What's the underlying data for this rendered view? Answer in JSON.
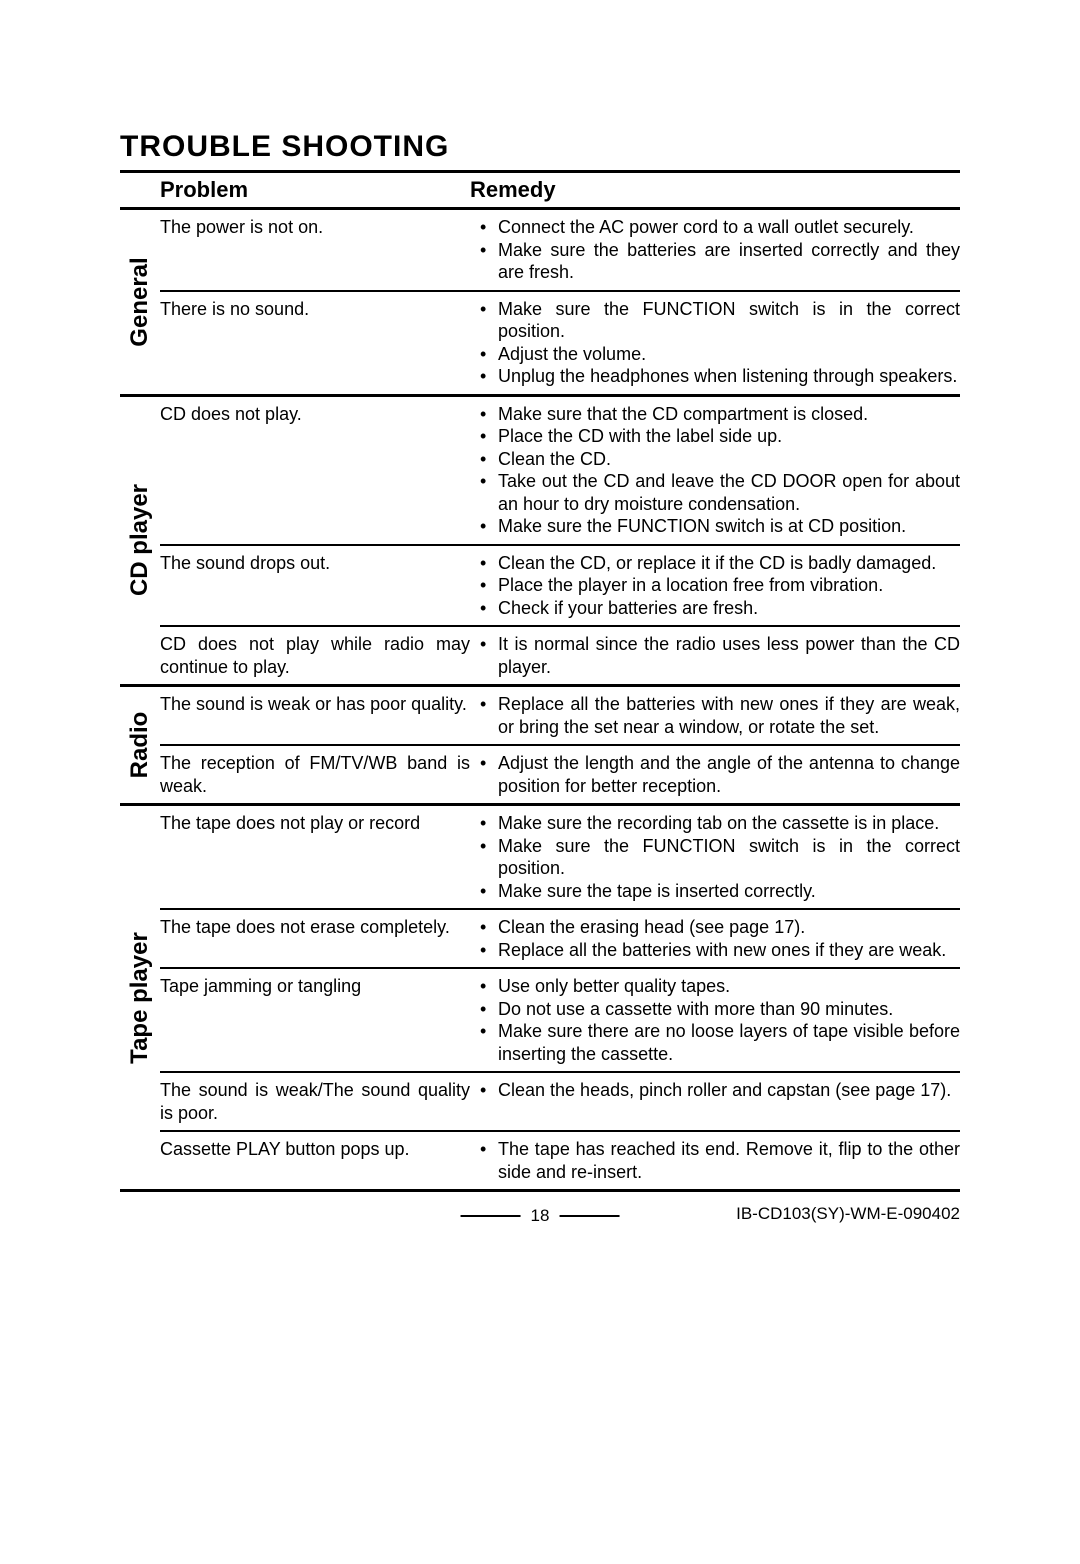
{
  "title": "TROUBLE SHOOTING",
  "headers": {
    "problem": "Problem",
    "remedy": "Remedy"
  },
  "sections": [
    {
      "category": "General",
      "rows": [
        {
          "problem": "The power is not on.",
          "remedies": [
            "Connect the AC power cord to a wall outlet securely.",
            "Make sure the batteries are inserted correctly and they are fresh."
          ]
        },
        {
          "problem": "There is no sound.",
          "remedies": [
            "Make sure the FUNCTION switch is in the correct position.",
            "Adjust the volume.",
            "Unplug the headphones when listening through speakers."
          ]
        }
      ]
    },
    {
      "category": "CD player",
      "rows": [
        {
          "problem": "CD does not play.",
          "remedies": [
            "Make sure that the CD compartment is closed.",
            "Place the CD with the label side up.",
            "Clean the CD.",
            "Take out the CD and leave the CD DOOR  open for about an hour to dry moisture condensation.",
            "Make sure the FUNCTION switch is at CD position."
          ]
        },
        {
          "problem": "The sound drops out.",
          "remedies": [
            "Clean the CD, or replace it if the CD is badly damaged.",
            "Place the player in a location free from vibration.",
            "Check if your batteries are fresh."
          ]
        },
        {
          "problem": "CD does not play while radio may continue to play.",
          "remedies": [
            "It is normal since the radio uses less power than the CD player."
          ]
        }
      ]
    },
    {
      "category": "Radio",
      "rows": [
        {
          "problem": "The sound is weak or has poor quality.",
          "remedies": [
            "Replace all the batteries with new ones if they are weak, or bring the set near a window, or rotate the set."
          ]
        },
        {
          "problem": "The reception of FM/TV/WB band is weak.",
          "remedies": [
            "Adjust the length and the angle of the antenna to change position for better reception."
          ]
        }
      ]
    },
    {
      "category": "Tape player",
      "rows": [
        {
          "problem": "The tape does not play or record",
          "remedies": [
            "Make sure the recording tab on the cassette is in place.",
            "Make sure the FUNCTION switch is in the correct position.",
            "Make sure the tape is inserted correctly."
          ]
        },
        {
          "problem": "The tape does not erase completely.",
          "remedies": [
            "Clean the erasing head (see page 17).",
            "Replace all the batteries with new ones if they are weak."
          ]
        },
        {
          "problem": "Tape jamming or tangling",
          "remedies": [
            "Use only better quality tapes.",
            "Do not use a cassette with more than 90 minutes.",
            "Make sure there are no loose layers of tape visible before inserting the cassette."
          ]
        },
        {
          "problem": "The sound is weak/The sound quality is poor.",
          "remedies": [
            "Clean the heads, pinch roller and capstan (see page 17)."
          ]
        },
        {
          "problem": "Cassette PLAY button pops up.",
          "remedies": [
            "The tape has reached its end. Remove it,  flip to the other side and re-insert."
          ]
        }
      ]
    }
  ],
  "footer": {
    "page_number": "18",
    "doc_id": "IB-CD103(SY)-WM-E-090402"
  }
}
